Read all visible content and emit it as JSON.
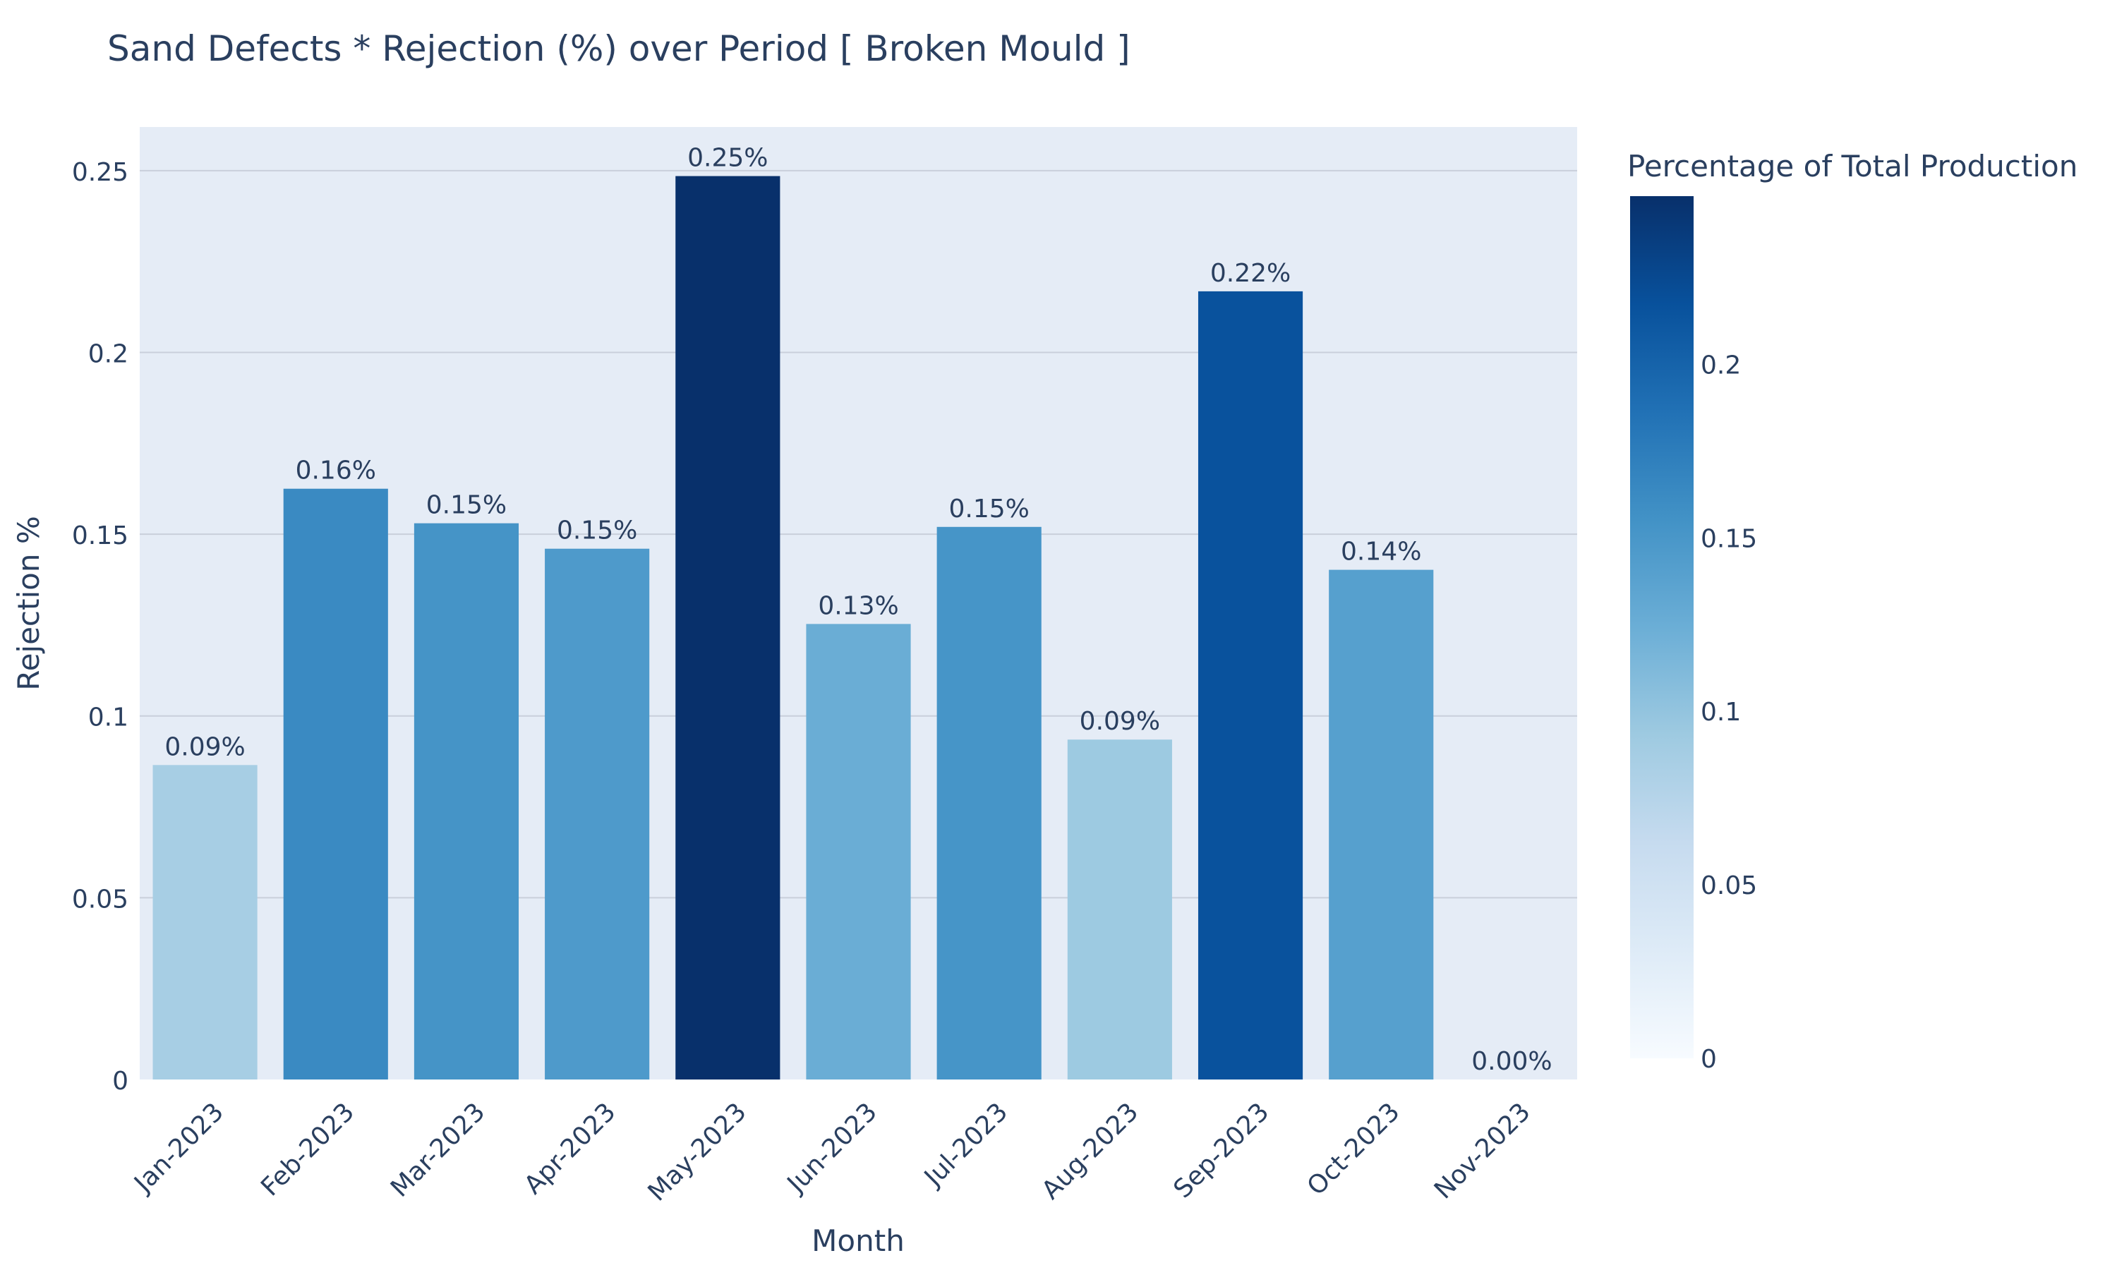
{
  "chart_data": {
    "type": "bar",
    "title": "Sand Defects * Rejection (%) over Period [ Broken Mould ]",
    "xlabel": "Month",
    "ylabel": "Rejection %",
    "categories": [
      "Jan-2023",
      "Feb-2023",
      "Mar-2023",
      "Apr-2023",
      "May-2023",
      "Jun-2023",
      "Jul-2023",
      "Aug-2023",
      "Sep-2023",
      "Oct-2023",
      "Nov-2023"
    ],
    "values": [
      0.0865,
      0.1625,
      0.153,
      0.146,
      0.2485,
      0.1253,
      0.152,
      0.0935,
      0.2168,
      0.1402,
      0.0
    ],
    "data_labels": [
      "0.09%",
      "0.16%",
      "0.15%",
      "0.15%",
      "0.25%",
      "0.13%",
      "0.15%",
      "0.09%",
      "0.22%",
      "0.14%",
      "0.00%"
    ],
    "ylim": [
      0,
      0.262
    ],
    "yticks": [
      0,
      0.05,
      0.1,
      0.15,
      0.2,
      0.25
    ],
    "ytick_labels": [
      "0",
      "0.05",
      "0.1",
      "0.15",
      "0.2",
      "0.25"
    ],
    "grid": true,
    "colorbar": {
      "title": "Percentage of Total Production",
      "colorscale": "Blues",
      "range": [
        0,
        0.2485
      ],
      "ticks": [
        0,
        0.05,
        0.1,
        0.15,
        0.2
      ],
      "tick_labels": [
        "0",
        "0.05",
        "0.1",
        "0.15",
        "0.2"
      ]
    },
    "colors": {
      "plot_background": "#e5ecf6",
      "gridline": "#c9cfdb",
      "text": "#2a3f5f"
    }
  }
}
